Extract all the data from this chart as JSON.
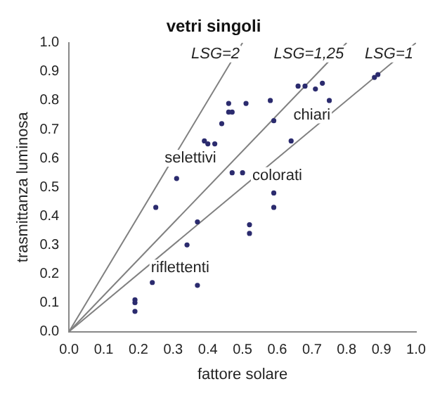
{
  "chart_data": {
    "type": "scatter",
    "title": "vetri singoli",
    "xlabel": "fattore solare",
    "ylabel": "trasmittanza luminosa",
    "xlim": [
      0,
      1
    ],
    "ylim": [
      0,
      1
    ],
    "xticks": [
      {
        "value": 0,
        "label": "0.0"
      },
      0.1,
      0.2,
      0.3,
      0.4,
      0.5,
      0.6,
      0.7,
      0.8,
      0.9,
      {
        "value": 1,
        "label": "1.0"
      }
    ],
    "yticks": [
      {
        "value": 0,
        "label": "0.0"
      },
      0.1,
      0.2,
      0.3,
      0.4,
      0.5,
      0.6,
      0.7,
      0.8,
      0.9,
      {
        "value": 1,
        "label": "1.0"
      }
    ],
    "grid": false,
    "legend": false,
    "marker": "circle",
    "series": [
      {
        "color": "#2b2b6e",
        "x": [
          0.25,
          0.37,
          0.34,
          0.24,
          0.37,
          0.19,
          0.19,
          0.19,
          0.52,
          0.52,
          0.59,
          0.59,
          0.31,
          0.46,
          0.51,
          0.46,
          0.47,
          0.44,
          0.39,
          0.4,
          0.42,
          0.47,
          0.5,
          0.66,
          0.68,
          0.71,
          0.73,
          0.75,
          0.58,
          0.59,
          0.64,
          0.88,
          0.89
        ],
        "values": [
          0.43,
          0.38,
          0.3,
          0.17,
          0.16,
          0.11,
          0.1,
          0.07,
          0.37,
          0.34,
          0.48,
          0.43,
          0.53,
          0.79,
          0.79,
          0.76,
          0.76,
          0.72,
          0.66,
          0.65,
          0.65,
          0.55,
          0.55,
          0.85,
          0.85,
          0.84,
          0.86,
          0.8,
          0.8,
          0.73,
          0.66,
          0.88,
          0.89
        ]
      },
      {
        "name": "LSG=2",
        "type": "line",
        "color": "#808080",
        "marker": "none",
        "x": [
          0,
          0.5
        ],
        "values": [
          0,
          1
        ]
      },
      {
        "name": "LSG=1,25",
        "type": "line",
        "color": "#808080",
        "marker": "none",
        "x": [
          0,
          0.8
        ],
        "values": [
          0,
          1
        ]
      },
      {
        "name": "LSG=1",
        "type": "line",
        "color": "#808080",
        "marker": "none",
        "x": [
          0,
          1
        ],
        "values": [
          0,
          1
        ]
      }
    ],
    "annotations": [
      "selettivi",
      "chiari",
      "colorati",
      "riflettenti"
    ]
  }
}
